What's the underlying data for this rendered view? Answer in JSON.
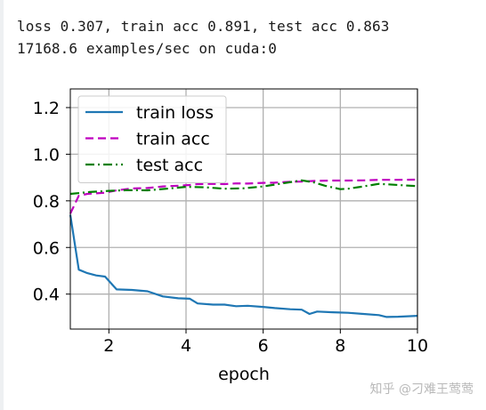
{
  "output": {
    "line1": "loss 0.307, train acc 0.891, test acc 0.863",
    "line2": "17168.6 examples/sec on cuda:0"
  },
  "watermark": "知乎 @刁难王莺莺",
  "chart_data": {
    "type": "line",
    "xlabel": "epoch",
    "ylabel": "",
    "xlim": [
      1,
      10
    ],
    "ylim": [
      0.25,
      1.28
    ],
    "xticks": [
      2,
      4,
      6,
      8,
      10
    ],
    "yticks": [
      0.4,
      0.6,
      0.8,
      1.0,
      1.2
    ],
    "xtick_labels": [
      "2",
      "4",
      "6",
      "8",
      "10"
    ],
    "ytick_labels": [
      "0.4",
      "0.6",
      "0.8",
      "1.0",
      "1.2"
    ],
    "grid": true,
    "legend_position": "upper-left",
    "series": [
      {
        "name": "train loss",
        "color": "#1f77b4",
        "style": "solid",
        "x": [
          1.0,
          1.22,
          1.44,
          1.67,
          1.9,
          2.2,
          2.6,
          3.0,
          3.4,
          3.8,
          4.1,
          4.3,
          4.7,
          5.0,
          5.3,
          5.6,
          6.0,
          6.3,
          6.7,
          7.0,
          7.2,
          7.4,
          7.8,
          8.2,
          8.6,
          9.0,
          9.2,
          9.5,
          10.0
        ],
        "y": [
          0.74,
          0.505,
          0.49,
          0.48,
          0.475,
          0.42,
          0.418,
          0.412,
          0.39,
          0.382,
          0.38,
          0.36,
          0.355,
          0.355,
          0.348,
          0.35,
          0.345,
          0.34,
          0.335,
          0.333,
          0.315,
          0.325,
          0.322,
          0.32,
          0.315,
          0.31,
          0.302,
          0.303,
          0.307
        ]
      },
      {
        "name": "train acc",
        "color": "#bf00bf",
        "style": "dashed",
        "x": [
          1.0,
          1.22,
          1.44,
          1.67,
          1.9,
          2.2,
          2.6,
          3.0,
          3.4,
          3.8,
          4.1,
          4.3,
          4.7,
          5.0,
          5.3,
          5.6,
          6.0,
          6.3,
          6.7,
          7.0,
          7.4,
          7.8,
          8.2,
          8.6,
          9.0,
          9.5,
          10.0
        ],
        "y": [
          0.745,
          0.822,
          0.83,
          0.832,
          0.835,
          0.845,
          0.853,
          0.855,
          0.862,
          0.865,
          0.868,
          0.872,
          0.873,
          0.872,
          0.875,
          0.874,
          0.877,
          0.878,
          0.882,
          0.883,
          0.886,
          0.887,
          0.887,
          0.888,
          0.89,
          0.89,
          0.891
        ]
      },
      {
        "name": "test acc",
        "color": "#007f00",
        "style": "dashdot",
        "x": [
          1.0,
          1.5,
          2.0,
          2.5,
          3.0,
          3.5,
          4.0,
          4.5,
          5.0,
          5.5,
          6.0,
          6.5,
          7.0,
          7.3,
          7.6,
          8.0,
          8.2,
          8.6,
          9.0,
          9.5,
          10.0
        ],
        "y": [
          0.83,
          0.838,
          0.843,
          0.846,
          0.845,
          0.852,
          0.86,
          0.858,
          0.852,
          0.854,
          0.862,
          0.875,
          0.888,
          0.88,
          0.865,
          0.85,
          0.852,
          0.862,
          0.873,
          0.868,
          0.863
        ]
      }
    ]
  }
}
